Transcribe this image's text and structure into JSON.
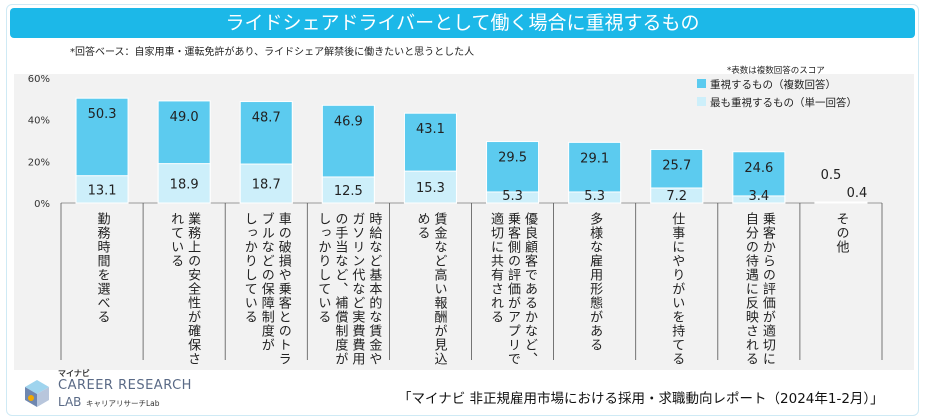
{
  "chart_data": {
    "type": "bar",
    "title": "ライドシェアドライバーとして働く場合に重視するもの",
    "subtitle": "*回答ベース：自家用車・運転免許があり、ライドシェア解禁後に働きたいと思うとした人",
    "note": "*表数は複数回答のスコア",
    "ylim": [
      0,
      60
    ],
    "yticks": [
      "0%",
      "20%",
      "40%",
      "60%"
    ],
    "ytick_values": [
      0,
      20,
      40,
      60
    ],
    "categories": [
      "勤務時間を選べる",
      "業務上の安全性が確保されている",
      "車の破損や乗客とのトラブルなどの保障制度がしっかりしている",
      "時給など基本的な賃金やガソリン代など実費費用の手当など、補償制度がしっかりしている",
      "賃金など高い報酬が見込める",
      "優良顧客であるかなど、乗客側の評価がアプリで適切に共有される",
      "多様な雇用形態がある",
      "仕事にやりがいを持てる",
      "乗客からの評価が適切に自分の待遇に反映される",
      "その他"
    ],
    "category_lines": [
      [
        "勤務時間を選べる"
      ],
      [
        "業務上の安全性が確保さ",
        "れている"
      ],
      [
        "車の破損や乗客とのトラ",
        "ブルなどの保障制度が",
        "しっかりしている"
      ],
      [
        "時給など基本的な賃金や",
        "ガソリン代など実費費用",
        "の手当など、補償制度が",
        "しっかりしている"
      ],
      [
        "賃金など高い報酬が見込",
        "める"
      ],
      [
        "優良顧客であるかなど、",
        "乗客側の評価がアプリで",
        "適切に共有される"
      ],
      [
        "多様な雇用形態がある"
      ],
      [
        "仕事にやりがいを持てる"
      ],
      [
        "乗客からの評価が適切に",
        "自分の待遇に反映される"
      ],
      [
        "その他"
      ]
    ],
    "series": [
      {
        "name": "重視するもの（複数回答）",
        "values": [
          50.3,
          49.0,
          48.7,
          46.9,
          43.1,
          29.5,
          29.1,
          25.7,
          24.6,
          0.5
        ],
        "labels": [
          "50.3",
          "49.0",
          "48.7",
          "46.9",
          "43.1",
          "29.5",
          "29.1",
          "25.7",
          "24.6",
          "0.5"
        ],
        "color": "#5ccbef"
      },
      {
        "name": "最も重視するもの（単一回答）",
        "values": [
          13.1,
          18.9,
          18.7,
          12.5,
          15.3,
          5.3,
          5.3,
          7.2,
          3.4,
          0.4
        ],
        "labels": [
          "13.1",
          "18.9",
          "18.7",
          "12.5",
          "15.3",
          "5.3",
          "5.3",
          "7.2",
          "3.4",
          "0.4"
        ],
        "color": "#cdeffa"
      }
    ],
    "legend_position": "top-right",
    "grid": false
  },
  "source": "「マイナビ 非正規雇用市場における採用・求職動向レポート（2024年1-2月）」",
  "logo": {
    "small": "マイナビ",
    "main": "CAREER RESEARCH",
    "lab": "LAB",
    "kana": "キャリアリサーチLab"
  },
  "colors": {
    "accent": "#1cb8e8",
    "panel": "#f2f2f2"
  }
}
